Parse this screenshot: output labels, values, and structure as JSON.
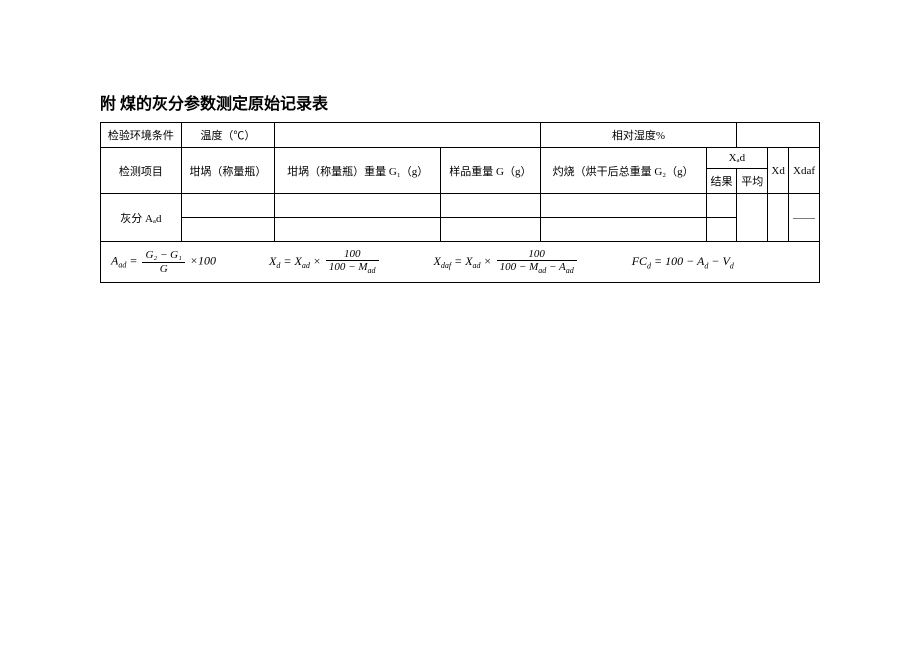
{
  "title": "附 煤的灰分参数测定原始记录表",
  "conditions": {
    "label": "检验环境条件",
    "temp_label": "温度（℃）",
    "humidity_label": "相对湿度%"
  },
  "headers": {
    "item": "检测项目",
    "crucible": "坩埚（称量瓶）",
    "crucible_weight": "坩埚（称量瓶）重量 G₁（g）",
    "sample_weight": "样品重量 G（g）",
    "burn_weight": "灼烧（烘干后总重量 G₂（g）",
    "xad": "Xₐd",
    "result": "结果",
    "average": "平均",
    "xd": "Xd",
    "xdaf": "Xdaf"
  },
  "rows": {
    "ash_label": "灰分 Aₐd",
    "dash": "——"
  },
  "formulas": {
    "f1_lhs": "A",
    "f1_sub": "ad",
    "f1_num": "G₂ − G₁",
    "f1_den": "G",
    "f1_tail": " ×100",
    "f2_lhs": "X",
    "f2_sub1": "d",
    "f2_mid": " = X",
    "f2_sub2": "ad",
    "f2_x": " × ",
    "f2_num": "100",
    "f2_den": "100 − M",
    "f2_den_sub": "ad",
    "f3_lhs": "X",
    "f3_sub1": "daf",
    "f3_mid": " = X",
    "f3_sub2": "ad",
    "f3_x": " × ",
    "f3_num": "100",
    "f3_den": "100 − M",
    "f3_den_sub1": "ad",
    "f3_den_mid": " − A",
    "f3_den_sub2": "ad",
    "f4": "FC",
    "f4_sub1": "d",
    "f4_mid": " = 100 − A",
    "f4_sub2": "d",
    "f4_mid2": " − V",
    "f4_sub3": "d"
  }
}
